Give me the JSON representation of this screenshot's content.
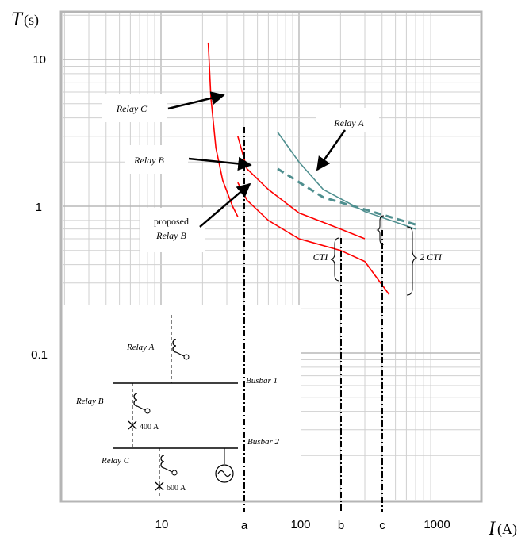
{
  "chart_data": {
    "type": "line",
    "xscale": "log",
    "yscale": "log",
    "xlim": [
      1,
      1000
    ],
    "ylim": [
      0.01,
      20
    ],
    "grid": true,
    "x_ticks": [
      "10",
      "100",
      "1000"
    ],
    "y_ticks": [
      "10",
      "1",
      "0.1"
    ],
    "x_title": "I",
    "x_unit": "(A)",
    "y_title": "T",
    "y_unit": "(s)",
    "colors": {
      "relay_c": "#ff0000",
      "relay_b": "#ff0000",
      "proposed_b": "#ff0000",
      "relay_a": "#4f8f8f",
      "relay_a_dashed": "#4f8f8f",
      "markers": "#000000"
    },
    "series": [
      {
        "points": [
          [
            22,
            13
          ],
          [
            23,
            5.5
          ],
          [
            25,
            2.5
          ],
          [
            28,
            1.5
          ],
          [
            33,
            1.0
          ],
          [
            36,
            0.85
          ]
        ]
      },
      {
        "points": [
          [
            36,
            3.0
          ],
          [
            42,
            1.8
          ],
          [
            60,
            1.3
          ],
          [
            100,
            0.9
          ],
          [
            200,
            0.7
          ],
          [
            300,
            0.6
          ]
        ]
      },
      {
        "points": [
          [
            36,
            1.45
          ],
          [
            42,
            1.1
          ],
          [
            60,
            0.8
          ],
          [
            100,
            0.6
          ],
          [
            200,
            0.5
          ],
          [
            300,
            0.42
          ],
          [
            450,
            0.25
          ]
        ]
      },
      {
        "points": [
          [
            70,
            3.2
          ],
          [
            100,
            2.0
          ],
          [
            150,
            1.3
          ],
          [
            300,
            0.92
          ],
          [
            700,
            0.7
          ]
        ]
      },
      {
        "points": [
          [
            70,
            1.8
          ],
          [
            150,
            1.15
          ],
          [
            300,
            0.95
          ],
          [
            700,
            0.75
          ]
        ]
      }
    ],
    "markers": [
      {
        "label": "a",
        "x": 36
      },
      {
        "label": "b",
        "x": 150
      },
      {
        "label": "c",
        "x": 300
      }
    ],
    "annotations": {
      "relay_c": "Relay C",
      "relay_b": "Relay B",
      "relay_a": "Relay A",
      "proposed_line1": "proposed",
      "proposed_line2": "Relay B",
      "cti": "CTI",
      "cti2": "2 CTI"
    },
    "single_line_diagram": {
      "relay_a": "Relay A",
      "relay_b": "Relay B",
      "relay_c": "Relay C",
      "busbar1": "Busbar 1",
      "busbar2": "Busbar 2",
      "rating_b": "400 A",
      "rating_c": "600 A"
    }
  }
}
